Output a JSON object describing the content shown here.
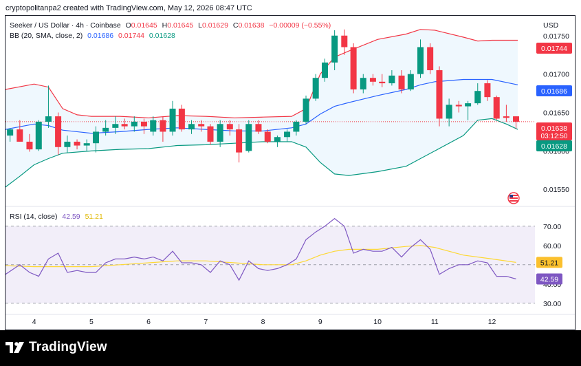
{
  "credit": "cryptopolitanpa2 created with TradingView.com, May 12, 2026 08:47 UTC",
  "legend": {
    "symbol": "Seeker / US Dollar · 4h · Coinbase",
    "o_label": "O",
    "o": "0.01645",
    "h_label": "H",
    "h": "0.01645",
    "l_label": "L",
    "l": "0.01629",
    "c_label": "C",
    "c": "0.01638",
    "change": "−0.00009 (−0.55%)",
    "bb_title": "BB (20, SMA, close, 2)",
    "bb_basis": "0.01686",
    "bb_upper": "0.01744",
    "bb_lower": "0.01628",
    "rsi_title": "RSI (14, close)",
    "rsi_value": "42.59",
    "rsi_ma": "51.21"
  },
  "currency": "USD",
  "brand": "TradingView",
  "colors": {
    "up": "#089981",
    "down": "#f23645",
    "bb_upper": "#f23645",
    "bb_basis": "#2962ff",
    "bb_lower": "#089981",
    "rsi": "#7e57c2",
    "rsi_ma": "#fdd835"
  },
  "chart_data": {
    "type": "candlestick",
    "price_axis": {
      "ticks": [
        "0.01750",
        "0.01700",
        "0.01650",
        "0.01600",
        "0.01550"
      ],
      "tick_values": [
        0.0175,
        0.017,
        0.0165,
        0.016,
        0.0155
      ],
      "range": [
        0.01535,
        0.01765
      ]
    },
    "x_axis": {
      "labels": [
        "4",
        "5",
        "6",
        "7",
        "8",
        "9",
        "10",
        "11",
        "12"
      ],
      "start": 3.5,
      "end": 12.75
    },
    "price_tags": [
      {
        "value": 0.01744,
        "text": "0.01744",
        "color": "#f23645"
      },
      {
        "value": 0.01686,
        "text": "0.01686",
        "color": "#2962ff"
      },
      {
        "value": 0.01638,
        "text": "0.01638",
        "sub": "03:12:50",
        "color": "#f23645"
      },
      {
        "value": 0.01628,
        "text": "0.01628",
        "color": "#089981"
      }
    ],
    "candles": [
      {
        "x": 3.58,
        "o": 0.0162,
        "h": 0.0163,
        "l": 0.01612,
        "c": 0.01628
      },
      {
        "x": 3.75,
        "o": 0.01628,
        "h": 0.0164,
        "l": 0.01612,
        "c": 0.01612
      },
      {
        "x": 3.92,
        "o": 0.01612,
        "h": 0.01622,
        "l": 0.01599,
        "c": 0.01602
      },
      {
        "x": 4.08,
        "o": 0.01602,
        "h": 0.0164,
        "l": 0.016,
        "c": 0.01638
      },
      {
        "x": 4.25,
        "o": 0.01638,
        "h": 0.01685,
        "l": 0.0163,
        "c": 0.01645
      },
      {
        "x": 4.42,
        "o": 0.01645,
        "h": 0.0165,
        "l": 0.01595,
        "c": 0.01605
      },
      {
        "x": 4.58,
        "o": 0.01605,
        "h": 0.0162,
        "l": 0.01598,
        "c": 0.01612
      },
      {
        "x": 4.75,
        "o": 0.01612,
        "h": 0.01615,
        "l": 0.01602,
        "c": 0.01607
      },
      {
        "x": 4.92,
        "o": 0.01607,
        "h": 0.01615,
        "l": 0.016,
        "c": 0.0161
      },
      {
        "x": 5.08,
        "o": 0.0161,
        "h": 0.01632,
        "l": 0.01598,
        "c": 0.01625
      },
      {
        "x": 5.25,
        "o": 0.01625,
        "h": 0.0164,
        "l": 0.0162,
        "c": 0.0163
      },
      {
        "x": 5.42,
        "o": 0.0163,
        "h": 0.01645,
        "l": 0.01622,
        "c": 0.01635
      },
      {
        "x": 5.58,
        "o": 0.01635,
        "h": 0.01642,
        "l": 0.01628,
        "c": 0.01632
      },
      {
        "x": 5.75,
        "o": 0.01632,
        "h": 0.01645,
        "l": 0.01625,
        "c": 0.01638
      },
      {
        "x": 5.92,
        "o": 0.01638,
        "h": 0.01642,
        "l": 0.01622,
        "c": 0.01632
      },
      {
        "x": 6.08,
        "o": 0.01625,
        "h": 0.01645,
        "l": 0.0162,
        "c": 0.0164
      },
      {
        "x": 6.25,
        "o": 0.0164,
        "h": 0.01645,
        "l": 0.01612,
        "c": 0.01625
      },
      {
        "x": 6.42,
        "o": 0.01625,
        "h": 0.01665,
        "l": 0.0162,
        "c": 0.01655
      },
      {
        "x": 6.58,
        "o": 0.01655,
        "h": 0.0166,
        "l": 0.01625,
        "c": 0.01628
      },
      {
        "x": 6.75,
        "o": 0.01628,
        "h": 0.0164,
        "l": 0.01622,
        "c": 0.01635
      },
      {
        "x": 6.92,
        "o": 0.01635,
        "h": 0.0164,
        "l": 0.01625,
        "c": 0.01632
      },
      {
        "x": 7.08,
        "o": 0.01632,
        "h": 0.01635,
        "l": 0.01608,
        "c": 0.01612
      },
      {
        "x": 7.25,
        "o": 0.01612,
        "h": 0.0164,
        "l": 0.01605,
        "c": 0.01635
      },
      {
        "x": 7.42,
        "o": 0.01635,
        "h": 0.0164,
        "l": 0.0162,
        "c": 0.01628
      },
      {
        "x": 7.58,
        "o": 0.01628,
        "h": 0.01635,
        "l": 0.01585,
        "c": 0.01598
      },
      {
        "x": 7.75,
        "o": 0.016,
        "h": 0.0164,
        "l": 0.01598,
        "c": 0.01635
      },
      {
        "x": 7.92,
        "o": 0.01635,
        "h": 0.0164,
        "l": 0.01622,
        "c": 0.01625
      },
      {
        "x": 8.08,
        "o": 0.01625,
        "h": 0.01628,
        "l": 0.0161,
        "c": 0.01612
      },
      {
        "x": 8.25,
        "o": 0.01612,
        "h": 0.0162,
        "l": 0.01605,
        "c": 0.01618
      },
      {
        "x": 8.42,
        "o": 0.01618,
        "h": 0.01628,
        "l": 0.01612,
        "c": 0.01625
      },
      {
        "x": 8.58,
        "o": 0.01625,
        "h": 0.0164,
        "l": 0.0162,
        "c": 0.01638
      },
      {
        "x": 8.75,
        "o": 0.01638,
        "h": 0.01672,
        "l": 0.01635,
        "c": 0.01668
      },
      {
        "x": 8.92,
        "o": 0.01668,
        "h": 0.017,
        "l": 0.01665,
        "c": 0.01695
      },
      {
        "x": 9.08,
        "o": 0.01695,
        "h": 0.0172,
        "l": 0.0169,
        "c": 0.01715
      },
      {
        "x": 9.25,
        "o": 0.01715,
        "h": 0.01757,
        "l": 0.01705,
        "c": 0.0175
      },
      {
        "x": 9.42,
        "o": 0.0175,
        "h": 0.01758,
        "l": 0.01725,
        "c": 0.01735
      },
      {
        "x": 9.58,
        "o": 0.01735,
        "h": 0.0174,
        "l": 0.01675,
        "c": 0.0168
      },
      {
        "x": 9.75,
        "o": 0.0168,
        "h": 0.017,
        "l": 0.01675,
        "c": 0.01695
      },
      {
        "x": 9.92,
        "o": 0.01695,
        "h": 0.017,
        "l": 0.01685,
        "c": 0.0169
      },
      {
        "x": 10.08,
        "o": 0.0169,
        "h": 0.017,
        "l": 0.01683,
        "c": 0.01688
      },
      {
        "x": 10.25,
        "o": 0.01688,
        "h": 0.01705,
        "l": 0.01685,
        "c": 0.01698
      },
      {
        "x": 10.42,
        "o": 0.01698,
        "h": 0.01705,
        "l": 0.01675,
        "c": 0.0168
      },
      {
        "x": 10.58,
        "o": 0.0168,
        "h": 0.01705,
        "l": 0.01678,
        "c": 0.017
      },
      {
        "x": 10.75,
        "o": 0.017,
        "h": 0.01745,
        "l": 0.01695,
        "c": 0.01735
      },
      {
        "x": 10.92,
        "o": 0.01735,
        "h": 0.0174,
        "l": 0.017,
        "c": 0.01705
      },
      {
        "x": 11.08,
        "o": 0.01705,
        "h": 0.0171,
        "l": 0.01632,
        "c": 0.01642
      },
      {
        "x": 11.25,
        "o": 0.01642,
        "h": 0.01668,
        "l": 0.01632,
        "c": 0.0166
      },
      {
        "x": 11.42,
        "o": 0.0166,
        "h": 0.01665,
        "l": 0.0165,
        "c": 0.01658
      },
      {
        "x": 11.58,
        "o": 0.01658,
        "h": 0.01665,
        "l": 0.0164,
        "c": 0.01662
      },
      {
        "x": 11.75,
        "o": 0.01662,
        "h": 0.01688,
        "l": 0.0166,
        "c": 0.01678
      },
      {
        "x": 11.92,
        "o": 0.01688,
        "h": 0.01692,
        "l": 0.01665,
        "c": 0.0167
      },
      {
        "x": 12.08,
        "o": 0.0167,
        "h": 0.01672,
        "l": 0.0164,
        "c": 0.01642
      },
      {
        "x": 12.25,
        "o": 0.01645,
        "h": 0.0166,
        "l": 0.01638,
        "c": 0.01643
      },
      {
        "x": 12.42,
        "o": 0.01645,
        "h": 0.01645,
        "l": 0.01629,
        "c": 0.01638
      }
    ],
    "bb_upper": [
      [
        3.5,
        0.0168
      ],
      [
        4.0,
        0.01687
      ],
      [
        4.25,
        0.01683
      ],
      [
        4.5,
        0.01655
      ],
      [
        4.75,
        0.01647
      ],
      [
        5.0,
        0.01645
      ],
      [
        5.5,
        0.01645
      ],
      [
        6.0,
        0.01643
      ],
      [
        6.5,
        0.01646
      ],
      [
        7.0,
        0.01645
      ],
      [
        7.5,
        0.01643
      ],
      [
        8.0,
        0.01644
      ],
      [
        8.5,
        0.01645
      ],
      [
        8.75,
        0.01655
      ],
      [
        9.0,
        0.017
      ],
      [
        9.25,
        0.01722
      ],
      [
        9.5,
        0.0173
      ],
      [
        10.0,
        0.01745
      ],
      [
        10.5,
        0.01752
      ],
      [
        10.75,
        0.01758
      ],
      [
        11.0,
        0.01757
      ],
      [
        11.5,
        0.01748
      ],
      [
        11.75,
        0.01743
      ],
      [
        12.0,
        0.01744
      ],
      [
        12.45,
        0.01744
      ]
    ],
    "bb_basis": [
      [
        3.5,
        0.01628
      ],
      [
        4.0,
        0.01635
      ],
      [
        4.25,
        0.01633
      ],
      [
        4.5,
        0.01627
      ],
      [
        5.0,
        0.01623
      ],
      [
        5.5,
        0.01625
      ],
      [
        6.0,
        0.01628
      ],
      [
        6.5,
        0.0163
      ],
      [
        7.0,
        0.01628
      ],
      [
        7.5,
        0.01626
      ],
      [
        8.0,
        0.01626
      ],
      [
        8.5,
        0.0163
      ],
      [
        8.75,
        0.01635
      ],
      [
        9.0,
        0.01648
      ],
      [
        9.25,
        0.01658
      ],
      [
        9.5,
        0.01663
      ],
      [
        10.0,
        0.01672
      ],
      [
        10.5,
        0.0168
      ],
      [
        10.75,
        0.01686
      ],
      [
        11.0,
        0.0169
      ],
      [
        11.5,
        0.01693
      ],
      [
        11.75,
        0.01693
      ],
      [
        12.0,
        0.01693
      ],
      [
        12.45,
        0.01686
      ]
    ],
    "bb_lower": [
      [
        3.5,
        0.01553
      ],
      [
        3.75,
        0.01567
      ],
      [
        4.0,
        0.01582
      ],
      [
        4.25,
        0.0159
      ],
      [
        4.5,
        0.01597
      ],
      [
        5.0,
        0.016
      ],
      [
        5.5,
        0.01602
      ],
      [
        6.0,
        0.01603
      ],
      [
        6.5,
        0.01607
      ],
      [
        7.0,
        0.01608
      ],
      [
        7.5,
        0.0161
      ],
      [
        8.0,
        0.01612
      ],
      [
        8.5,
        0.01612
      ],
      [
        8.75,
        0.01605
      ],
      [
        9.0,
        0.01585
      ],
      [
        9.25,
        0.0157
      ],
      [
        9.5,
        0.01568
      ],
      [
        10.0,
        0.01573
      ],
      [
        10.5,
        0.0158
      ],
      [
        10.75,
        0.0159
      ],
      [
        11.0,
        0.016
      ],
      [
        11.5,
        0.0162
      ],
      [
        11.75,
        0.0164
      ],
      [
        12.0,
        0.01642
      ],
      [
        12.25,
        0.01635
      ],
      [
        12.45,
        0.01628
      ]
    ],
    "rsi": {
      "ticks": [
        "70.00",
        "60.00",
        "40.00",
        "30.00"
      ],
      "tick_values": [
        70,
        60,
        40,
        30
      ],
      "range": [
        26,
        76
      ],
      "band": [
        30,
        70
      ],
      "values": [
        [
          3.5,
          45
        ],
        [
          3.75,
          50
        ],
        [
          3.92,
          46
        ],
        [
          4.08,
          44
        ],
        [
          4.25,
          53
        ],
        [
          4.42,
          56
        ],
        [
          4.58,
          46
        ],
        [
          4.75,
          47
        ],
        [
          4.92,
          46
        ],
        [
          5.08,
          46
        ],
        [
          5.25,
          51
        ],
        [
          5.42,
          53
        ],
        [
          5.58,
          53
        ],
        [
          5.75,
          54
        ],
        [
          5.92,
          53
        ],
        [
          6.08,
          54
        ],
        [
          6.25,
          52
        ],
        [
          6.42,
          57
        ],
        [
          6.58,
          51
        ],
        [
          6.75,
          51
        ],
        [
          6.92,
          50
        ],
        [
          7.08,
          46
        ],
        [
          7.25,
          52
        ],
        [
          7.42,
          50
        ],
        [
          7.58,
          42
        ],
        [
          7.75,
          52
        ],
        [
          7.92,
          48
        ],
        [
          8.08,
          47
        ],
        [
          8.25,
          48
        ],
        [
          8.42,
          50
        ],
        [
          8.58,
          53
        ],
        [
          8.75,
          63
        ],
        [
          8.92,
          67
        ],
        [
          9.08,
          70
        ],
        [
          9.25,
          74
        ],
        [
          9.42,
          70
        ],
        [
          9.58,
          56
        ],
        [
          9.75,
          58
        ],
        [
          9.92,
          57
        ],
        [
          10.08,
          57
        ],
        [
          10.25,
          59
        ],
        [
          10.42,
          54
        ],
        [
          10.58,
          59
        ],
        [
          10.75,
          63
        ],
        [
          10.92,
          58
        ],
        [
          11.08,
          45
        ],
        [
          11.25,
          48
        ],
        [
          11.42,
          50
        ],
        [
          11.58,
          50
        ],
        [
          11.75,
          52
        ],
        [
          11.92,
          51
        ],
        [
          12.08,
          44
        ],
        [
          12.25,
          44
        ],
        [
          12.42,
          42.59
        ]
      ],
      "ma": [
        [
          3.5,
          49.5
        ],
        [
          4.0,
          49
        ],
        [
          4.5,
          49
        ],
        [
          5.0,
          49
        ],
        [
          5.5,
          50
        ],
        [
          6.0,
          51
        ],
        [
          6.5,
          52
        ],
        [
          7.0,
          52
        ],
        [
          7.5,
          51
        ],
        [
          8.0,
          50
        ],
        [
          8.5,
          50
        ],
        [
          8.75,
          52
        ],
        [
          9.0,
          55
        ],
        [
          9.25,
          57
        ],
        [
          9.5,
          58
        ],
        [
          10.0,
          58
        ],
        [
          10.5,
          59.5
        ],
        [
          10.75,
          60
        ],
        [
          11.0,
          59
        ],
        [
          11.5,
          55
        ],
        [
          12.0,
          53
        ],
        [
          12.42,
          51.21
        ]
      ]
    }
  }
}
